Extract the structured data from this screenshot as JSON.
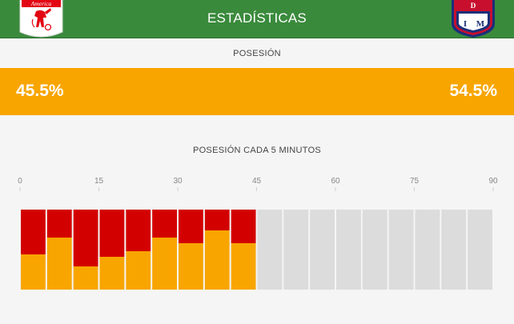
{
  "header": {
    "title": "ESTADÍSTICAS",
    "home_logo_text": "America",
    "away_logo_letters": [
      "D",
      "I",
      "M"
    ]
  },
  "possession": {
    "label": "POSESIÓN",
    "home": "45.5%",
    "away": "54.5%"
  },
  "timeline": {
    "title": "POSESIÓN CADA 5 MINUTOS",
    "ticks": [
      "0",
      "15",
      "30",
      "45",
      "60",
      "75",
      "90"
    ],
    "intervals_total": 18,
    "home_share": [
      0.44,
      0.65,
      0.29,
      0.41,
      0.48,
      0.65,
      0.58,
      0.74,
      0.58
    ],
    "colors": {
      "home": "#f8a500",
      "away": "#d30000",
      "empty": "#dcdcdc",
      "tick_line": "#cfcfcf",
      "tick_text": "#888888"
    }
  }
}
